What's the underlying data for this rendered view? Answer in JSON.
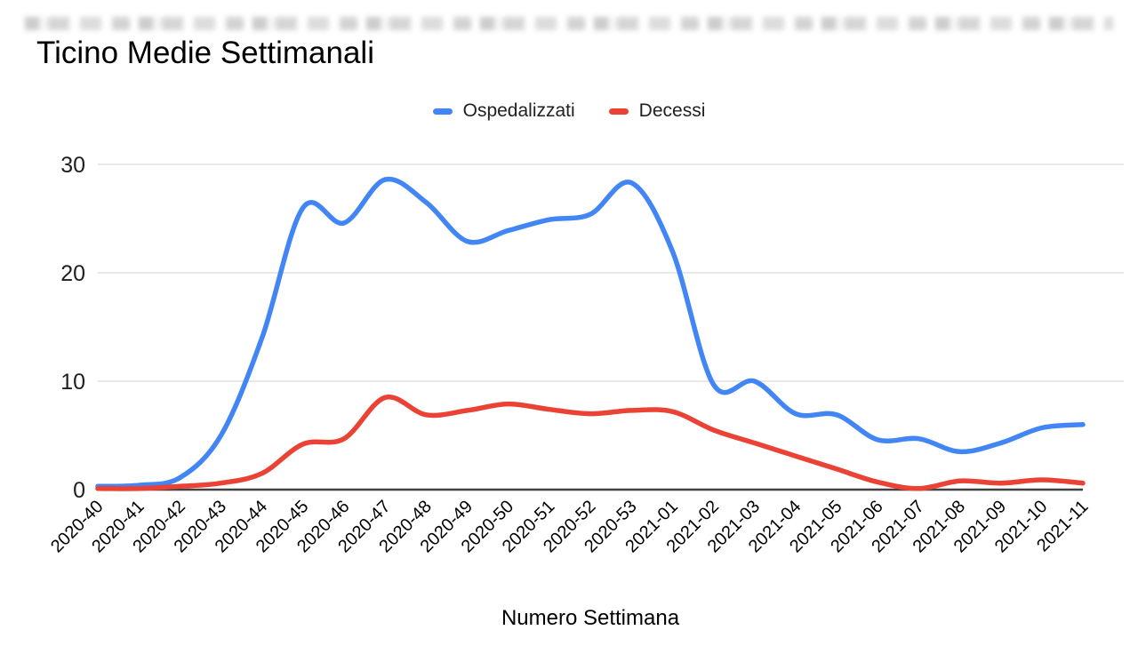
{
  "page": {
    "title": "Ticino Medie Settimanali"
  },
  "axes": {
    "x_title": "Numero Settimana",
    "y_ticks": [
      0,
      10,
      20,
      30
    ]
  },
  "colors": {
    "series_blue": "#4285F4",
    "series_red": "#EA4335",
    "gridline": "#e0e0e0",
    "zero_axis": "#424242",
    "tick_text": "#1f1f1f"
  },
  "chart_data": {
    "type": "line",
    "smooth": true,
    "title": "Ticino Medie Settimanali",
    "xlabel": "Numero Settimana",
    "ylabel": "",
    "ylim": [
      0,
      30
    ],
    "yticks": [
      0,
      10,
      20,
      30
    ],
    "grid": true,
    "legend_position": "top",
    "categories": [
      "2020-40",
      "2020-41",
      "2020-42",
      "2020-43",
      "2020-44",
      "2020-45",
      "2020-46",
      "2020-47",
      "2020-48",
      "2020-49",
      "2020-50",
      "2020-51",
      "2020-52",
      "2020-53",
      "2021-01",
      "2021-02",
      "2021-03",
      "2021-04",
      "2021-05",
      "2021-06",
      "2021-07",
      "2021-08",
      "2021-09",
      "2021-10",
      "2021-11"
    ],
    "series": [
      {
        "name": "Ospedalizzati",
        "color": "#4285F4",
        "values": [
          0.3,
          0.4,
          1.1,
          5.0,
          14.0,
          26.0,
          24.6,
          28.6,
          26.5,
          22.9,
          23.9,
          24.9,
          25.4,
          28.3,
          22.0,
          9.7,
          10.0,
          7.0,
          6.9,
          4.6,
          4.7,
          3.5,
          4.3,
          5.7,
          6.0
        ]
      },
      {
        "name": "Decessi",
        "color": "#EA4335",
        "values": [
          0.1,
          0.1,
          0.3,
          0.6,
          1.5,
          4.2,
          4.7,
          8.5,
          6.9,
          7.3,
          7.9,
          7.4,
          7.0,
          7.3,
          7.2,
          5.5,
          4.3,
          3.1,
          1.9,
          0.7,
          0.1,
          0.8,
          0.6,
          0.9,
          0.6
        ]
      }
    ]
  }
}
